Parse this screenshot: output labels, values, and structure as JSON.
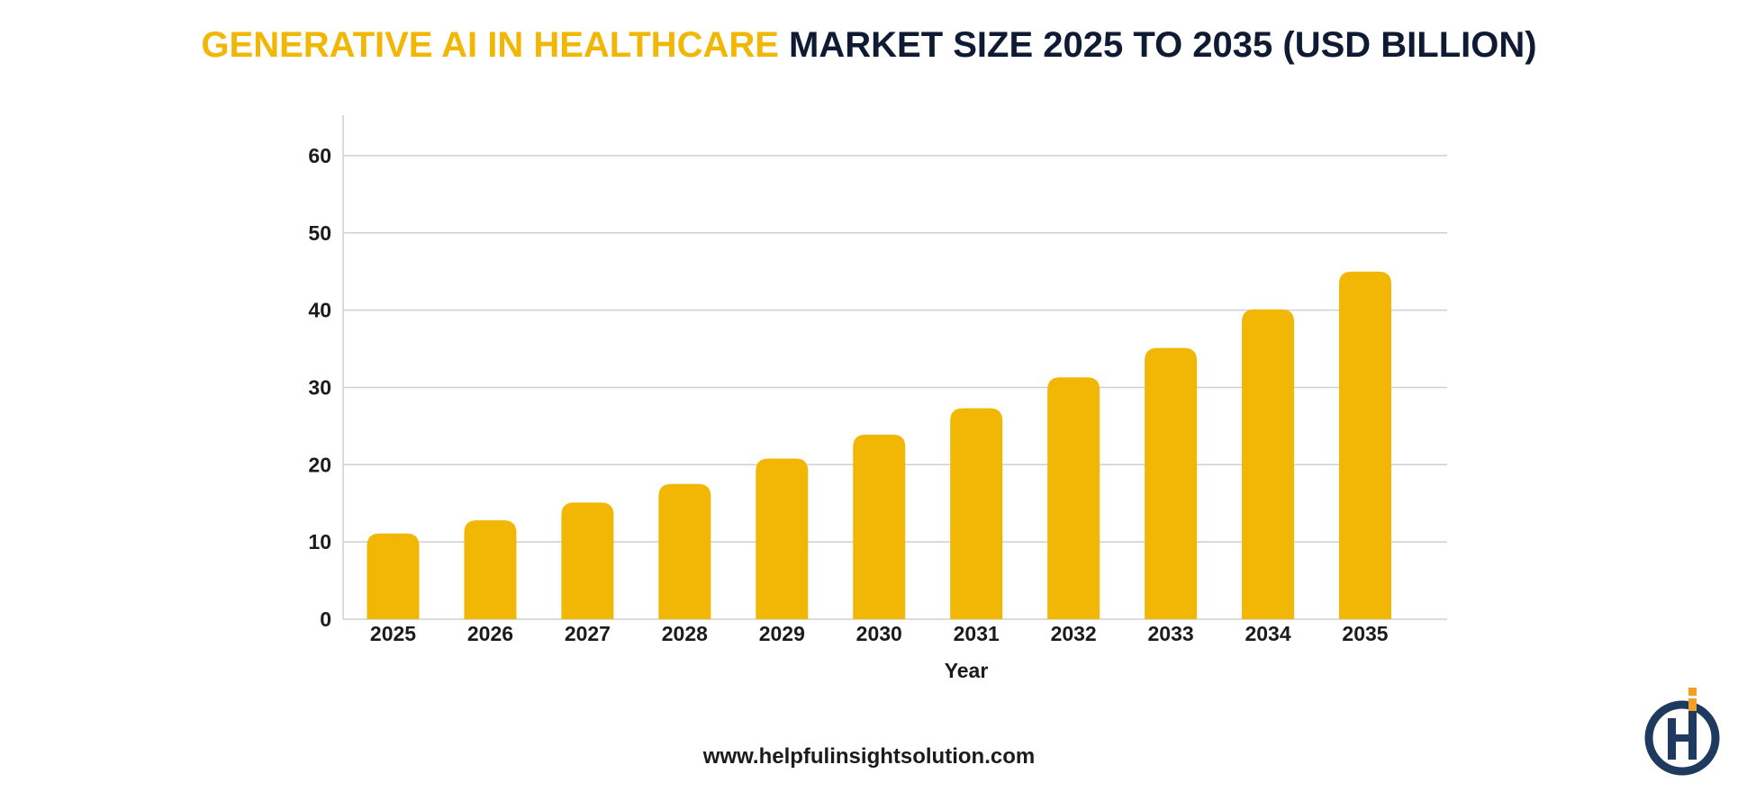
{
  "title": {
    "highlight": "GENERATIVE AI IN HEALTHCARE",
    "rest": "MARKET SIZE 2025 TO 2035 (USD BILLION)"
  },
  "footer": {
    "website": "www.helpfulinsightsolution.com"
  },
  "logo": {
    "icon": "helpful-insight-logo-icon"
  },
  "colors": {
    "accent": "#F2B705",
    "title_dark": "#0F1A33",
    "grid": "#CFCFCF",
    "logo_navy": "#1F3A5F",
    "logo_orange": "#F2A024"
  },
  "chart_data": {
    "type": "bar",
    "xlabel": "Year",
    "ylabel": "",
    "categories": [
      "2025",
      "2026",
      "2027",
      "2028",
      "2029",
      "2030",
      "2031",
      "2032",
      "2033",
      "2034",
      "2035"
    ],
    "values": [
      11.1,
      12.8,
      15.1,
      17.5,
      20.8,
      23.9,
      27.3,
      31.3,
      35.1,
      40.1,
      45.0
    ],
    "ylim": [
      0,
      65
    ],
    "yticks": [
      0,
      10,
      20,
      30,
      40,
      50,
      60
    ],
    "grid": true,
    "legend": "none"
  }
}
